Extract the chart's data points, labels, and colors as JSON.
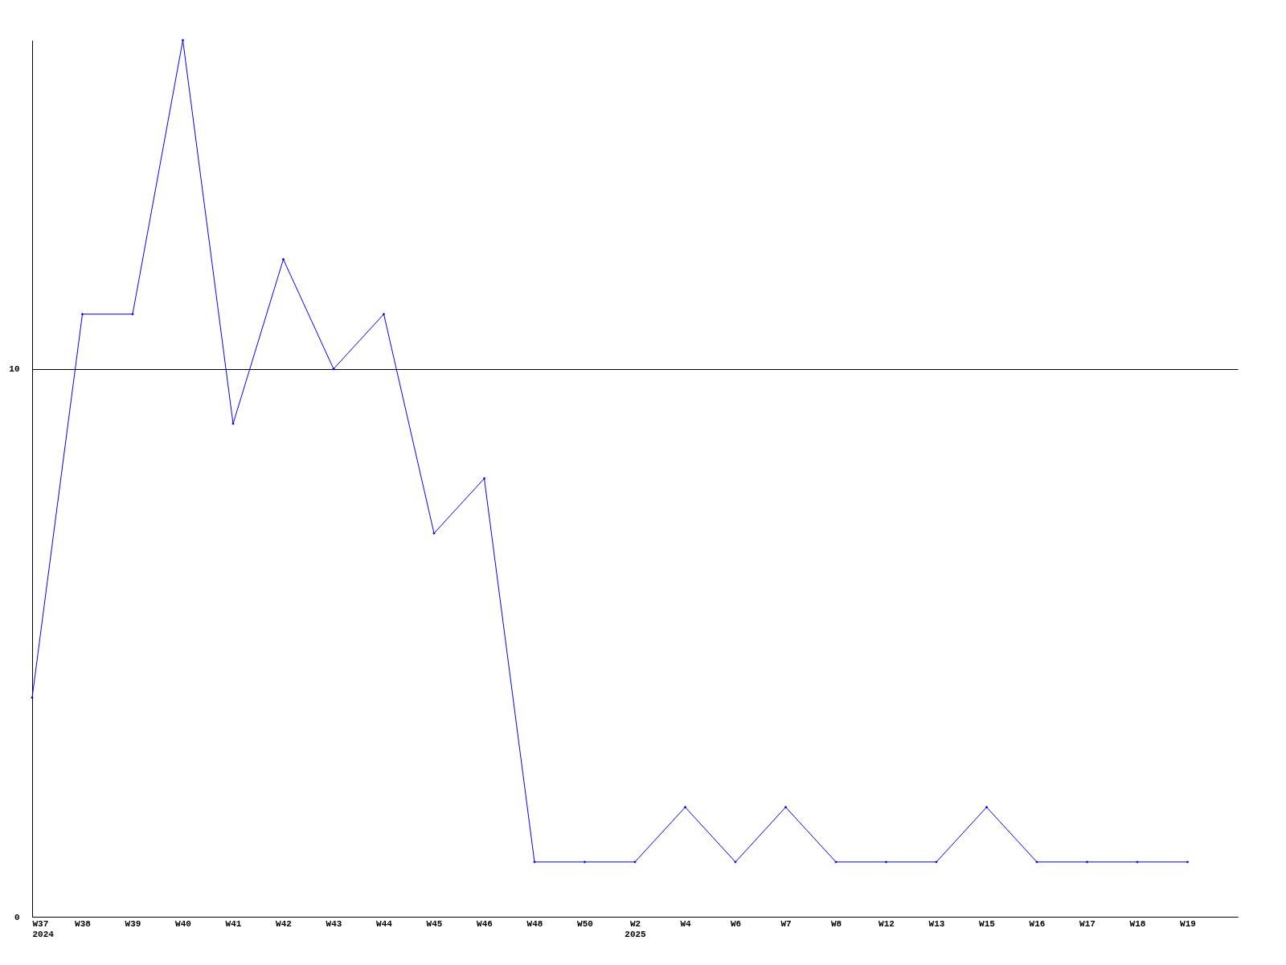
{
  "chart_data": {
    "type": "line",
    "categories": [
      "W37\n2024",
      "W38",
      "W39",
      "W40",
      "W41",
      "W42",
      "W43",
      "W44",
      "W45",
      "W46",
      "W48",
      "W50",
      "W2\n2025",
      "W4",
      "W6",
      "W7",
      "W8",
      "W12",
      "W13",
      "W15",
      "W16",
      "W17",
      "W18",
      "W19"
    ],
    "series": [
      {
        "color": "#0000ff",
        "values": [
          4,
          11,
          11,
          16,
          9,
          12,
          10,
          11,
          7,
          8,
          1,
          1,
          1,
          2,
          1,
          2,
          1,
          1,
          1,
          2,
          1,
          1,
          1,
          1
        ]
      }
    ],
    "ylim": [
      0,
      16
    ],
    "yticks": [
      0,
      10
    ],
    "grid": "y",
    "marker": "diamond",
    "line_style": "solid"
  }
}
